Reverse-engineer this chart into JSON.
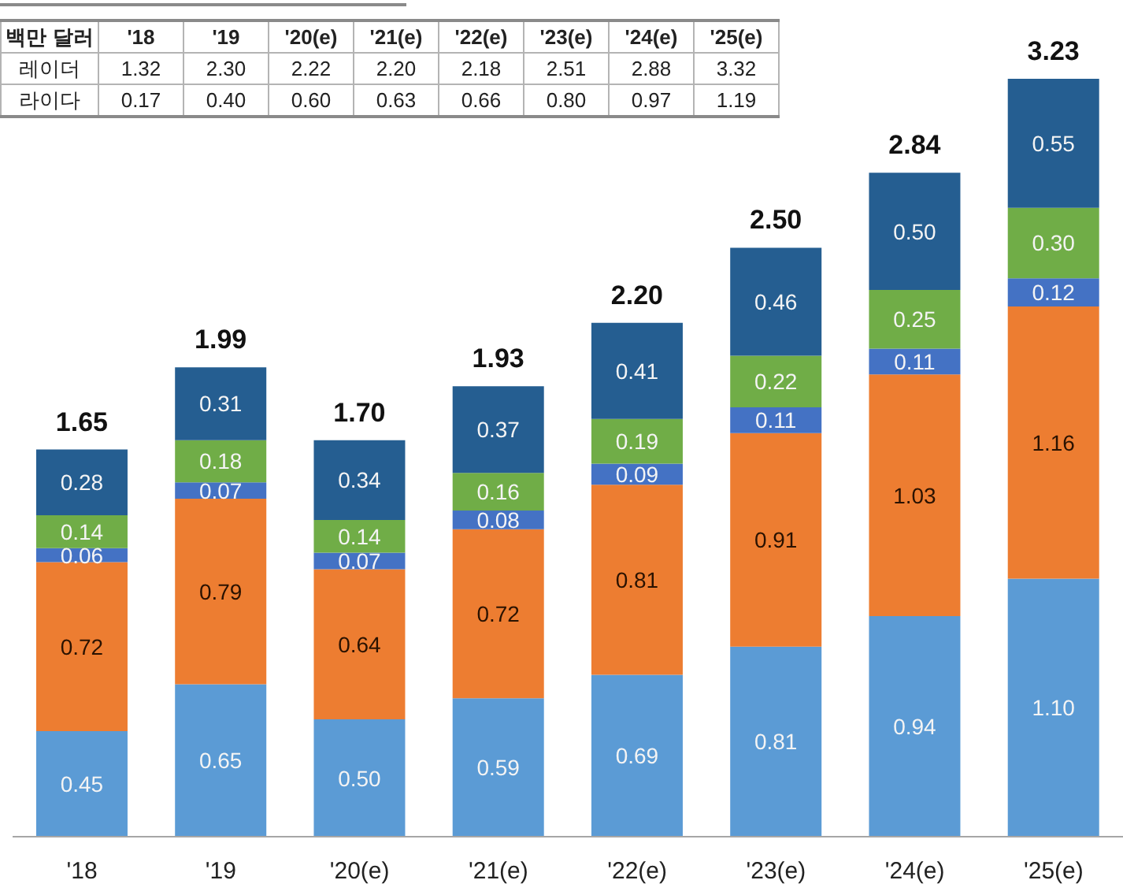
{
  "chart_data": [
    {
      "type": "heatmap",
      "ylabel": "백만 달러",
      "categories": [
        "'18",
        "'19",
        "'20(e)",
        "'21(e)",
        "'22(e)",
        "'23(e)",
        "'24(e)",
        "'25(e)"
      ],
      "y_categories": [
        "레이더",
        "라이다"
      ],
      "cells": [
        [
          1.32,
          2.3,
          2.22,
          2.2,
          2.18,
          2.51,
          2.88,
          3.32
        ],
        [
          0.17,
          0.4,
          0.6,
          0.63,
          0.66,
          0.8,
          0.97,
          1.19
        ]
      ],
      "cell_labels": [
        [
          "1.32",
          "2.30",
          "2.22",
          "2.20",
          "2.18",
          "2.51",
          "2.88",
          "3.32"
        ],
        [
          "0.17",
          "0.40",
          "0.60",
          "0.63",
          "0.66",
          "0.80",
          "0.97",
          "1.19"
        ]
      ]
    },
    {
      "type": "bar",
      "categories": [
        "'18",
        "'19",
        "'20(e)",
        "'21(e)",
        "'22(e)",
        "'23(e)",
        "'24(e)",
        "'25(e)"
      ],
      "series": [
        {
          "color": "#5b9bd5",
          "values": [
            0.45,
            0.65,
            0.5,
            0.59,
            0.69,
            0.81,
            0.94,
            1.1
          ],
          "value_labels": [
            "0.45",
            "0.65",
            "0.50",
            "0.59",
            "0.69",
            "0.81",
            "0.94",
            "1.10"
          ]
        },
        {
          "color": "#ed7d31",
          "values": [
            0.72,
            0.79,
            0.64,
            0.72,
            0.81,
            0.91,
            1.03,
            1.16
          ],
          "value_labels": [
            "0.72",
            "0.79",
            "0.64",
            "0.72",
            "0.81",
            "0.91",
            "1.03",
            "1.16"
          ]
        },
        {
          "color": "#4472c4",
          "values": [
            0.06,
            0.07,
            0.07,
            0.08,
            0.09,
            0.11,
            0.11,
            0.12
          ],
          "value_labels": [
            "0.06",
            "0.07",
            "0.07",
            "0.08",
            "0.09",
            "0.11",
            "0.11",
            "0.12"
          ]
        },
        {
          "color": "#70ad47",
          "values": [
            0.14,
            0.18,
            0.14,
            0.16,
            0.19,
            0.22,
            0.25,
            0.3
          ],
          "value_labels": [
            "0.14",
            "0.18",
            "0.14",
            "0.16",
            "0.19",
            "0.22",
            "0.25",
            "0.30"
          ]
        },
        {
          "color": "#255e91",
          "values": [
            0.28,
            0.31,
            0.34,
            0.37,
            0.41,
            0.46,
            0.5,
            0.55
          ],
          "value_labels": [
            "0.28",
            "0.31",
            "0.34",
            "0.37",
            "0.41",
            "0.46",
            "0.50",
            "0.55"
          ]
        }
      ],
      "stacked": true,
      "totals": [
        "1.65",
        "1.99",
        "1.70",
        "1.93",
        "2.20",
        "2.50",
        "2.84",
        "3.23"
      ],
      "tick_labels": "x"
    }
  ]
}
